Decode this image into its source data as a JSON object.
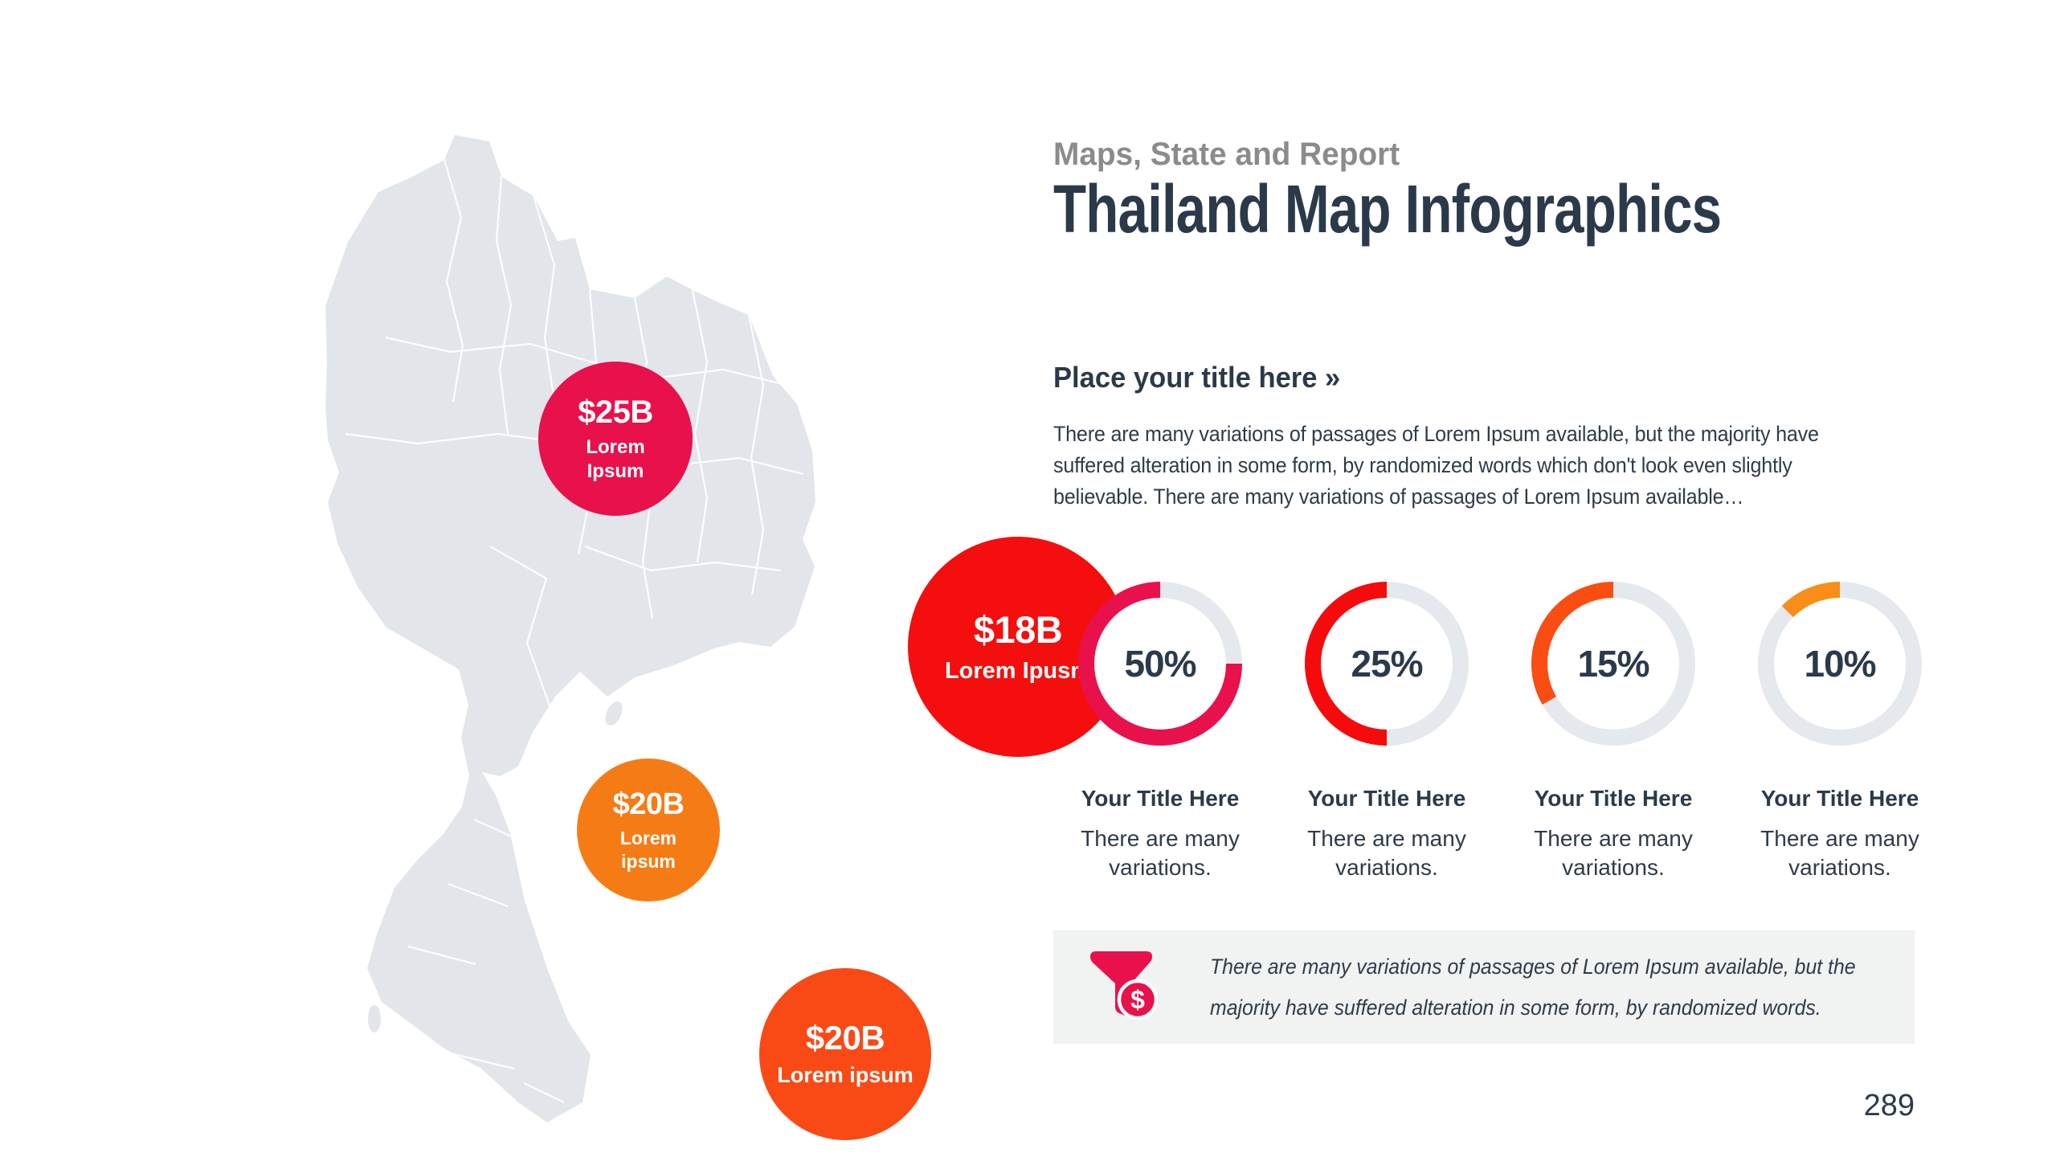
{
  "slide": {
    "eyebrow": "Maps, State and Report",
    "title": "Thailand Map Infographics",
    "page_number": "289"
  },
  "intro": {
    "heading": "Place your title here »",
    "body_lines": [
      "There are many variations of passages of Lorem Ipsum available, but the majority have",
      "suffered alteration in some form, by randomized words which don't look even slightly",
      "believable. There are many variations of passages of Lorem Ipsum available…"
    ]
  },
  "map": {
    "region": "Thailand",
    "fill_color": "#e2e5ea",
    "border_color": "#ffffff",
    "bubbles": [
      {
        "value": "$25B",
        "label_lines": [
          "Lorem",
          "Ipsum"
        ],
        "color": "#e8114b"
      },
      {
        "value": "$18B",
        "label_lines": [
          "Lorem Ipusm"
        ],
        "color": "#f40e0e"
      },
      {
        "value": "$20B",
        "label_lines": [
          "Lorem",
          "ipsum"
        ],
        "color": "#f57c15"
      },
      {
        "value": "$20B",
        "label_lines": [
          "Lorem ipsum"
        ],
        "color": "#f94a16"
      }
    ]
  },
  "chart_data": {
    "type": "donut",
    "title": "",
    "track_color": "#e5e8ec",
    "items": [
      {
        "value": 50,
        "label": "50%",
        "sweep_deg": 270,
        "color": "#e8114b",
        "title": "Your Title Here",
        "caption_lines": [
          "There are many",
          "variations."
        ]
      },
      {
        "value": 25,
        "label": "25%",
        "sweep_deg": 180,
        "color": "#f50b0b",
        "title": "Your Title Here",
        "caption_lines": [
          "There are many",
          "variations."
        ]
      },
      {
        "value": 15,
        "label": "15%",
        "sweep_deg": 120,
        "color": "#f94d12",
        "title": "Your Title Here",
        "caption_lines": [
          "There are many",
          "variations."
        ]
      },
      {
        "value": 10,
        "label": "10%",
        "sweep_deg": 45,
        "color": "#f78e17",
        "title": "Your Title Here",
        "caption_lines": [
          "There are many",
          "variations."
        ]
      }
    ]
  },
  "note": {
    "icon": "funnel-dollar-icon",
    "icon_color": "#e8114b",
    "icon_badge": "$",
    "text_lines": [
      "There are many variations of passages of Lorem Ipsum available, but the",
      "majority have suffered alteration in some form, by randomized words."
    ]
  }
}
